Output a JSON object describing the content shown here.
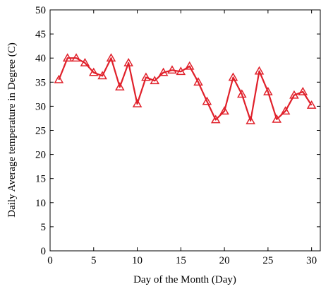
{
  "chart_data": {
    "type": "line",
    "title": "",
    "xlabel": "Day of the Month (Day)",
    "ylabel": "Daily Average temperature in Degree (C)",
    "xlim": [
      0,
      31
    ],
    "ylim": [
      0,
      50
    ],
    "x_ticks": [
      "0",
      "5",
      "10",
      "15",
      "20",
      "25",
      "30"
    ],
    "y_ticks": [
      "0",
      "5",
      "10",
      "15",
      "20",
      "25",
      "30",
      "35",
      "40",
      "45",
      "50"
    ],
    "grid": false,
    "marker": "triangle",
    "line_color": "#e0202a",
    "x": [
      1,
      2,
      3,
      4,
      5,
      6,
      7,
      8,
      9,
      10,
      11,
      12,
      13,
      14,
      15,
      16,
      17,
      18,
      19,
      20,
      21,
      22,
      23,
      24,
      25,
      26,
      27,
      28,
      29,
      30
    ],
    "series": [
      {
        "values": [
          35.5,
          40,
          40,
          39,
          37,
          36.3,
          40,
          34,
          39,
          30.5,
          36,
          35.3,
          37,
          37.5,
          37.2,
          38.3,
          35,
          31,
          27.2,
          29,
          36,
          32.5,
          27,
          37.3,
          33,
          27.3,
          29,
          32.3,
          33,
          30.2
        ]
      }
    ]
  }
}
